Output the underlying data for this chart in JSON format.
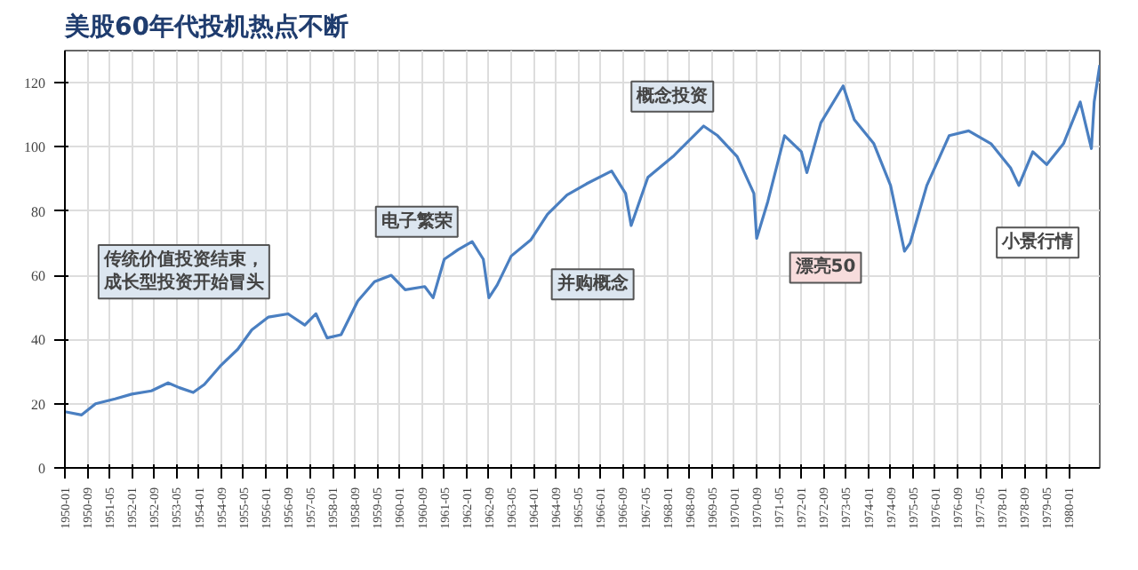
{
  "chart_data": {
    "type": "line",
    "title": "美股60年代投机热点不断",
    "x": [
      "1950-01",
      "1950-07",
      "1950-12",
      "1951-07",
      "1952-01",
      "1952-08",
      "1953-02",
      "1953-06",
      "1953-11",
      "1954-03",
      "1954-09",
      "1955-03",
      "1955-08",
      "1956-02",
      "1956-09",
      "1957-03",
      "1957-07",
      "1957-11",
      "1958-04",
      "1958-10",
      "1959-04",
      "1959-10",
      "1960-03",
      "1960-10",
      "1961-01",
      "1961-05",
      "1961-10",
      "1962-03",
      "1962-07",
      "1962-09",
      "1962-12",
      "1963-05",
      "1963-12",
      "1964-06",
      "1965-01",
      "1965-08",
      "1966-05",
      "1966-10",
      "1966-12",
      "1967-06",
      "1968-03",
      "1969-02",
      "1969-07",
      "1970-02",
      "1970-08",
      "1970-09",
      "1971-01",
      "1971-07",
      "1972-01",
      "1972-03",
      "1972-08",
      "1973-04",
      "1973-08",
      "1974-03",
      "1974-09",
      "1975-02",
      "1975-04",
      "1975-10",
      "1976-06",
      "1977-01",
      "1977-09",
      "1978-04",
      "1978-07",
      "1978-12",
      "1979-05",
      "1979-11",
      "1980-05",
      "1980-09",
      "1980-10",
      "1980-12"
    ],
    "series": [
      {
        "color": "#4a7fc1",
        "values": [
          17.5,
          16.5,
          20,
          21.5,
          23,
          24,
          26.5,
          25,
          23.5,
          26,
          32,
          37,
          43,
          47,
          48,
          44.5,
          48,
          40.5,
          41.5,
          52,
          58,
          60,
          55.5,
          56.5,
          53,
          65,
          68,
          70.5,
          65,
          53,
          57,
          66,
          71,
          79,
          85,
          88.5,
          92.5,
          85.5,
          75.5,
          90.5,
          97,
          106.5,
          103.5,
          97,
          85.5,
          71.5,
          83,
          103.5,
          98.5,
          92,
          107.5,
          119,
          108.5,
          101,
          88,
          67.5,
          70,
          88,
          103.5,
          105,
          101,
          93.5,
          88,
          98.5,
          94.5,
          101,
          114,
          99.5,
          114,
          125.5
        ]
      }
    ],
    "xlim": [
      "1950-01",
      "1980-12"
    ],
    "xticks": [
      "1950-01",
      "1950-09",
      "1951-05",
      "1952-01",
      "1952-09",
      "1953-05",
      "1954-01",
      "1954-09",
      "1955-05",
      "1956-01",
      "1956-09",
      "1957-05",
      "1958-01",
      "1958-09",
      "1959-05",
      "1960-01",
      "1960-09",
      "1961-05",
      "1962-01",
      "1962-09",
      "1963-05",
      "1964-01",
      "1964-09",
      "1965-05",
      "1966-01",
      "1966-09",
      "1967-05",
      "1968-01",
      "1968-09",
      "1969-05",
      "1970-01",
      "1970-09",
      "1971-05",
      "1972-01",
      "1972-09",
      "1973-05",
      "1974-01",
      "1974-09",
      "1975-05",
      "1976-01",
      "1976-09",
      "1977-05",
      "1978-01",
      "1978-09",
      "1979-05",
      "1980-01"
    ],
    "ylim": [
      0,
      130
    ],
    "yticks": [
      0,
      20,
      40,
      60,
      80,
      100,
      120
    ],
    "grid": true,
    "line_style": "solid",
    "marker": "none",
    "annotations": [
      "传统价值投资结束，成长型投资开始冒头",
      "电子繁荣",
      "并购概念",
      "概念投资",
      "漂亮50",
      "小景行情"
    ]
  }
}
